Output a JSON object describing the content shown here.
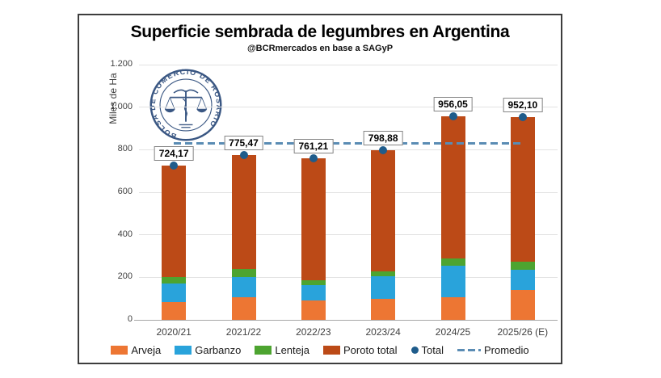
{
  "header": {
    "title": "Superficie sembrada de legumbres en Argentina",
    "subtitle": "@BCRmercados en base a SAGyP"
  },
  "logo": {
    "ring_text": "BOLSA DE COMERCIO DE ROSARIO",
    "color": "#3A5783"
  },
  "chart_data": {
    "type": "bar",
    "stacked": true,
    "title": "Superficie sembrada de legumbres en Argentina",
    "subtitle": "@BCRmercados en base a SAGyP",
    "xlabel": "",
    "ylabel": "Miles de Ha",
    "ylim": [
      0,
      1200
    ],
    "grid": true,
    "legend_position": "bottom",
    "yticks": [
      {
        "value": 0,
        "label": "0"
      },
      {
        "value": 200,
        "label": "200"
      },
      {
        "value": 400,
        "label": "400"
      },
      {
        "value": 600,
        "label": "600"
      },
      {
        "value": 800,
        "label": "800"
      },
      {
        "value": 1000,
        "label": "1.000"
      },
      {
        "value": 1200,
        "label": "1.200"
      }
    ],
    "categories": [
      "2020/21",
      "2021/22",
      "2022/23",
      "2023/24",
      "2024/25",
      "2025/26 (E)"
    ],
    "series": [
      {
        "name": "Arveja",
        "color": "#ED7633",
        "values": [
          84,
          108,
          90,
          98,
          105,
          140
        ]
      },
      {
        "name": "Garbanzo",
        "color": "#29A3DB",
        "values": [
          86,
          93,
          72,
          107,
          151,
          94
        ]
      },
      {
        "name": "Lenteja",
        "color": "#4DA430",
        "values": [
          32,
          37,
          23,
          22,
          34,
          38
        ]
      },
      {
        "name": "Poroto total",
        "color": "#BC4A17",
        "values": [
          522.17,
          537.47,
          576.21,
          571.88,
          666.05,
          680.1
        ]
      }
    ],
    "totals": {
      "name": "Total",
      "color": "#1F5C8B",
      "values": [
        724.17,
        775.47,
        761.21,
        798.88,
        956.05,
        952.1
      ],
      "labels": [
        "724,17",
        "775,47",
        "761,21",
        "798,88",
        "956,05",
        "952,10"
      ]
    },
    "average_line": {
      "name": "Promedio",
      "value": 828,
      "color": "#5A8CB4",
      "style": "dashed"
    }
  }
}
